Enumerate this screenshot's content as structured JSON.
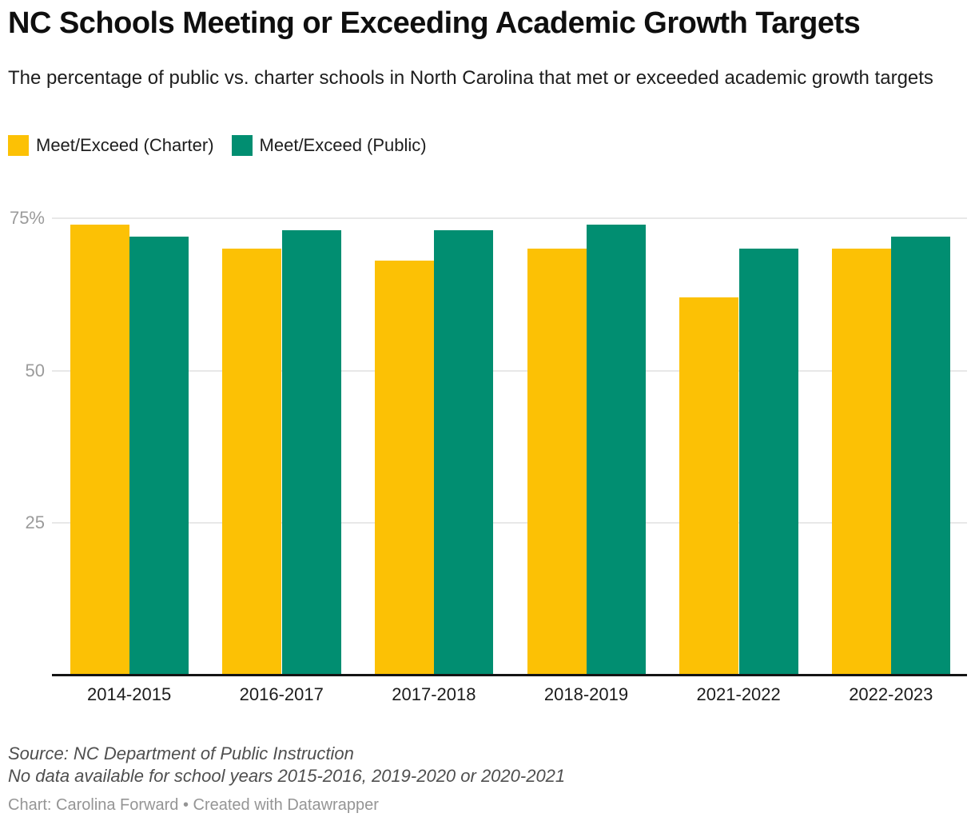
{
  "header": {
    "title": "NC Schools Meeting or Exceeding Academic Growth Targets",
    "subtitle": "The percentage of public vs. charter schools in North Carolina that met or exceeded academic growth targets"
  },
  "colors": {
    "charter": "#fcc105",
    "public": "#018e71",
    "gridline": "#e8e8e8",
    "baseline": "#141414",
    "axis_label": "#9b9b9b"
  },
  "chart_data": {
    "type": "bar",
    "title": "NC Schools Meeting or Exceeding Academic Growth Targets",
    "categories": [
      "2014-2015",
      "2016-2017",
      "2017-2018",
      "2018-2019",
      "2021-2022",
      "2022-2023"
    ],
    "series": [
      {
        "name": "Meet/Exceed (Charter)",
        "color": "#fcc105",
        "values": [
          74,
          70,
          68,
          70,
          62,
          70
        ]
      },
      {
        "name": "Meet/Exceed (Public)",
        "color": "#018e71",
        "values": [
          72,
          73,
          73,
          74,
          70,
          72
        ]
      }
    ],
    "xlabel": "",
    "ylabel": "",
    "ylim": [
      0,
      75
    ],
    "yticks": [
      {
        "value": 25,
        "label": "25"
      },
      {
        "value": 50,
        "label": "50"
      },
      {
        "value": 75,
        "label": "75%"
      }
    ],
    "grid": true,
    "legend_position": "top-left"
  },
  "footer": {
    "source_line1": "Source: NC Department of Public Instruction",
    "source_line2": "No data available for school years 2015-2016, 2019-2020 or 2020-2021",
    "credit": "Chart: Carolina Forward • Created with Datawrapper"
  }
}
